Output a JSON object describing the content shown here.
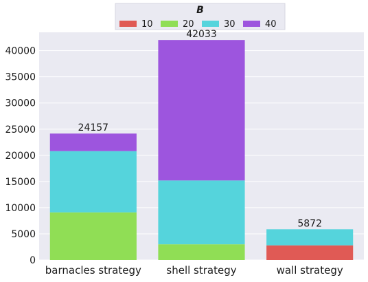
{
  "chart_data": {
    "type": "bar",
    "stacked": true,
    "title": "",
    "xlabel": "",
    "ylabel": "",
    "categories": [
      "barnacles strategy",
      "shell strategy",
      "wall strategy"
    ],
    "totals": [
      24157,
      42033,
      5872
    ],
    "series": [
      {
        "name": "10",
        "color": "#e05a55",
        "values": [
          0,
          0,
          2800
        ]
      },
      {
        "name": "20",
        "color": "#90de55",
        "values": [
          9100,
          3000,
          0
        ]
      },
      {
        "name": "30",
        "color": "#55d4dc",
        "values": [
          11700,
          12200,
          3072
        ]
      },
      {
        "name": "40",
        "color": "#9d55de",
        "values": [
          3357,
          26833,
          0
        ]
      }
    ],
    "ylim": [
      0,
      43500
    ],
    "yticks": [
      0,
      5000,
      10000,
      15000,
      20000,
      25000,
      30000,
      35000,
      40000
    ],
    "grid": true,
    "legend": {
      "title": "B",
      "placement": "top-center",
      "orientation": "horizontal"
    },
    "background": "#eaeaf2"
  }
}
